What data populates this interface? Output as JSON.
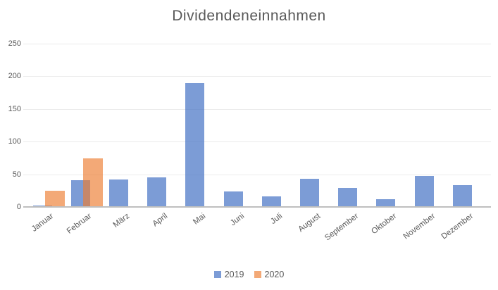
{
  "chart_data": {
    "type": "bar",
    "title": "Dividendeneinnahmen",
    "categories": [
      "Januar",
      "Februar",
      "März",
      "April",
      "Mai",
      "Juni",
      "Juli",
      "August",
      "September",
      "Oktober",
      "November",
      "Dezember"
    ],
    "series": [
      {
        "name": "2019",
        "color": "#4472C4",
        "opacity": 0.7,
        "values": [
          2,
          41,
          42,
          45,
          190,
          24,
          16,
          43,
          29,
          12,
          47,
          33
        ]
      },
      {
        "name": "2020",
        "color": "#ED7D31",
        "opacity": 0.66,
        "values": [
          25,
          74,
          null,
          null,
          null,
          null,
          null,
          null,
          null,
          null,
          null,
          null
        ]
      }
    ],
    "ylim": [
      0,
      250
    ],
    "yticks": [
      250,
      200,
      150,
      100,
      50,
      0
    ],
    "grid": true,
    "legend_position": "bottom",
    "colors": {
      "grid": "#ebebeb",
      "axis_line": "#bfbfbf",
      "text": "#595959",
      "background": "#ffffff"
    }
  }
}
